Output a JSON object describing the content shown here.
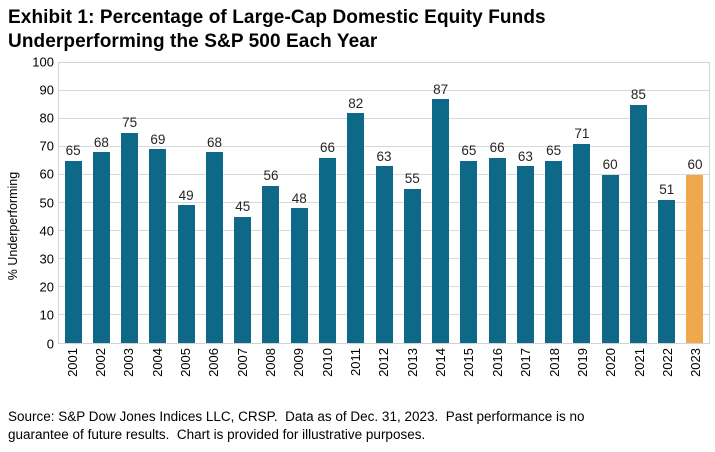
{
  "title": "Exhibit 1: Percentage of Large-Cap Domestic Equity Funds Underperforming the S&P 500 Each Year",
  "chart_data": {
    "type": "bar",
    "categories": [
      "2001",
      "2002",
      "2003",
      "2004",
      "2005",
      "2006",
      "2007",
      "2008",
      "2009",
      "2010",
      "2011",
      "2012",
      "2013",
      "2014",
      "2015",
      "2016",
      "2017",
      "2018",
      "2019",
      "2020",
      "2021",
      "2022",
      "2023"
    ],
    "values": [
      65,
      68,
      75,
      69,
      49,
      68,
      45,
      56,
      48,
      66,
      82,
      63,
      55,
      87,
      65,
      66,
      63,
      65,
      71,
      60,
      85,
      51,
      60
    ],
    "title": "Exhibit 1: Percentage of Large-Cap Domestic Equity Funds Underperforming the S&P 500 Each Year",
    "xlabel": "",
    "ylabel": "% Underperforming",
    "ylim": [
      0,
      100
    ],
    "ytick_step": 10,
    "grid": true,
    "legend": "none",
    "highlight_category": "2023",
    "colors": {
      "bar": "#0d6987",
      "highlight": "#f0a84c",
      "gridline": "#d9d9d9",
      "value_label": "#262626"
    }
  },
  "footer": {
    "source": "Source: S&P Dow Jones Indices LLC, CRSP.  Data as of Dec. 31, 2023.  Past performance is no\nguarantee of future results.  Chart is provided for illustrative purposes."
  }
}
